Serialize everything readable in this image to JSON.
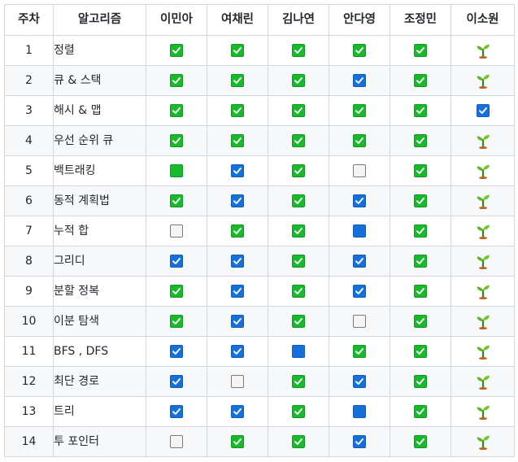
{
  "table": {
    "headers": [
      "주차",
      "알고리즘",
      "이민아",
      "여채린",
      "김나연",
      "안다영",
      "조정민",
      "이소원"
    ],
    "icon_legend": {
      "G": "green-checked-checkbox-icon",
      "B": "blue-checked-checkbox-icon",
      "g": "green-filled-checkbox-icon",
      "b": "blue-filled-checkbox-icon",
      "U": "unchecked-checkbox-icon",
      "S": "seedling-icon"
    },
    "rows": [
      {
        "week": "1",
        "topic": "정렬",
        "status": [
          "G",
          "G",
          "G",
          "G",
          "G",
          "S"
        ]
      },
      {
        "week": "2",
        "topic": "큐 & 스택",
        "status": [
          "G",
          "G",
          "G",
          "B",
          "G",
          "S"
        ]
      },
      {
        "week": "3",
        "topic": "해시 & 맵",
        "status": [
          "G",
          "G",
          "G",
          "G",
          "G",
          "B"
        ]
      },
      {
        "week": "4",
        "topic": "우선 순위 큐",
        "status": [
          "G",
          "G",
          "G",
          "G",
          "G",
          "S"
        ]
      },
      {
        "week": "5",
        "topic": "백트래킹",
        "status": [
          "g",
          "B",
          "G",
          "U",
          "G",
          "S"
        ]
      },
      {
        "week": "6",
        "topic": "동적 계획법",
        "status": [
          "G",
          "B",
          "G",
          "B",
          "G",
          "S"
        ]
      },
      {
        "week": "7",
        "topic": "누적 합",
        "status": [
          "U",
          "G",
          "G",
          "b",
          "G",
          "S"
        ]
      },
      {
        "week": "8",
        "topic": "그리디",
        "status": [
          "B",
          "B",
          "G",
          "B",
          "G",
          "S"
        ]
      },
      {
        "week": "9",
        "topic": "분할 정복",
        "status": [
          "G",
          "B",
          "G",
          "B",
          "G",
          "S"
        ]
      },
      {
        "week": "10",
        "topic": "이분 탐색",
        "status": [
          "G",
          "B",
          "G",
          "U",
          "G",
          "S"
        ]
      },
      {
        "week": "11",
        "topic": "BFS , DFS",
        "status": [
          "B",
          "B",
          "b",
          "G",
          "G",
          "S"
        ]
      },
      {
        "week": "12",
        "topic": "최단 경로",
        "status": [
          "B",
          "U",
          "G",
          "B",
          "G",
          "S"
        ]
      },
      {
        "week": "13",
        "topic": "트리",
        "status": [
          "B",
          "B",
          "G",
          "b",
          "G",
          "S"
        ]
      },
      {
        "week": "14",
        "topic": "투 포인터",
        "status": [
          "U",
          "G",
          "G",
          "B",
          "G",
          "S"
        ]
      }
    ]
  }
}
